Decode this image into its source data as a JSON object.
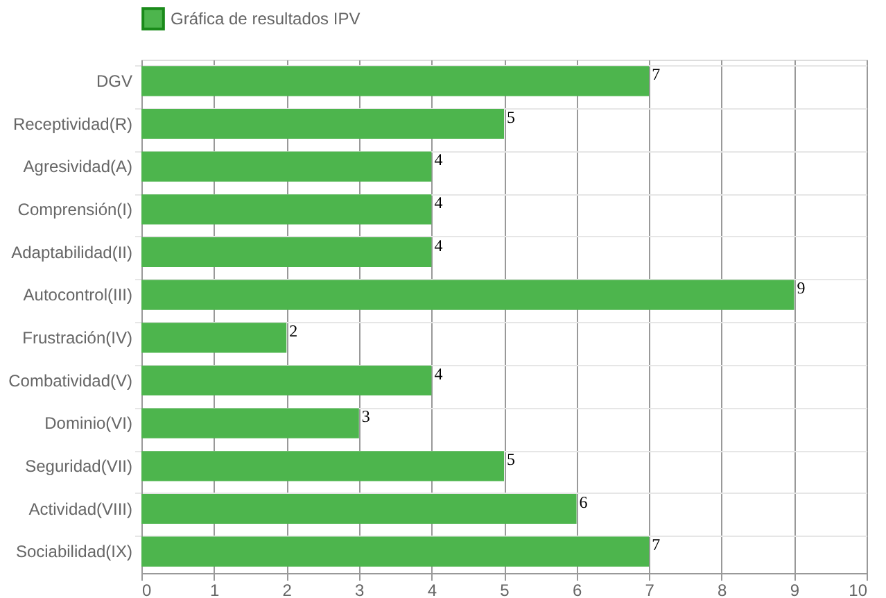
{
  "chart_data": {
    "type": "bar",
    "orientation": "horizontal",
    "categories": [
      "DGV",
      "Receptividad(R)",
      "Agresividad(A)",
      "Comprensión(I)",
      "Adaptabilidad(II)",
      "Autocontrol(III)",
      "Frustración(IV)",
      "Combatividad(V)",
      "Dominio(VI)",
      "Seguridad(VII)",
      "Actividad(VIII)",
      "Sociabilidad(IX)"
    ],
    "series": [
      {
        "name": "Gráfica de resultados IPV",
        "color": "#4db54d",
        "values": [
          7,
          5,
          4,
          4,
          4,
          9,
          2,
          4,
          3,
          5,
          6,
          7
        ]
      }
    ],
    "xlim": [
      0,
      10
    ],
    "xticks": [
      0,
      1,
      2,
      3,
      4,
      5,
      6,
      7,
      8,
      9,
      10
    ],
    "grid": true,
    "legend": "top",
    "data_labels": true
  }
}
